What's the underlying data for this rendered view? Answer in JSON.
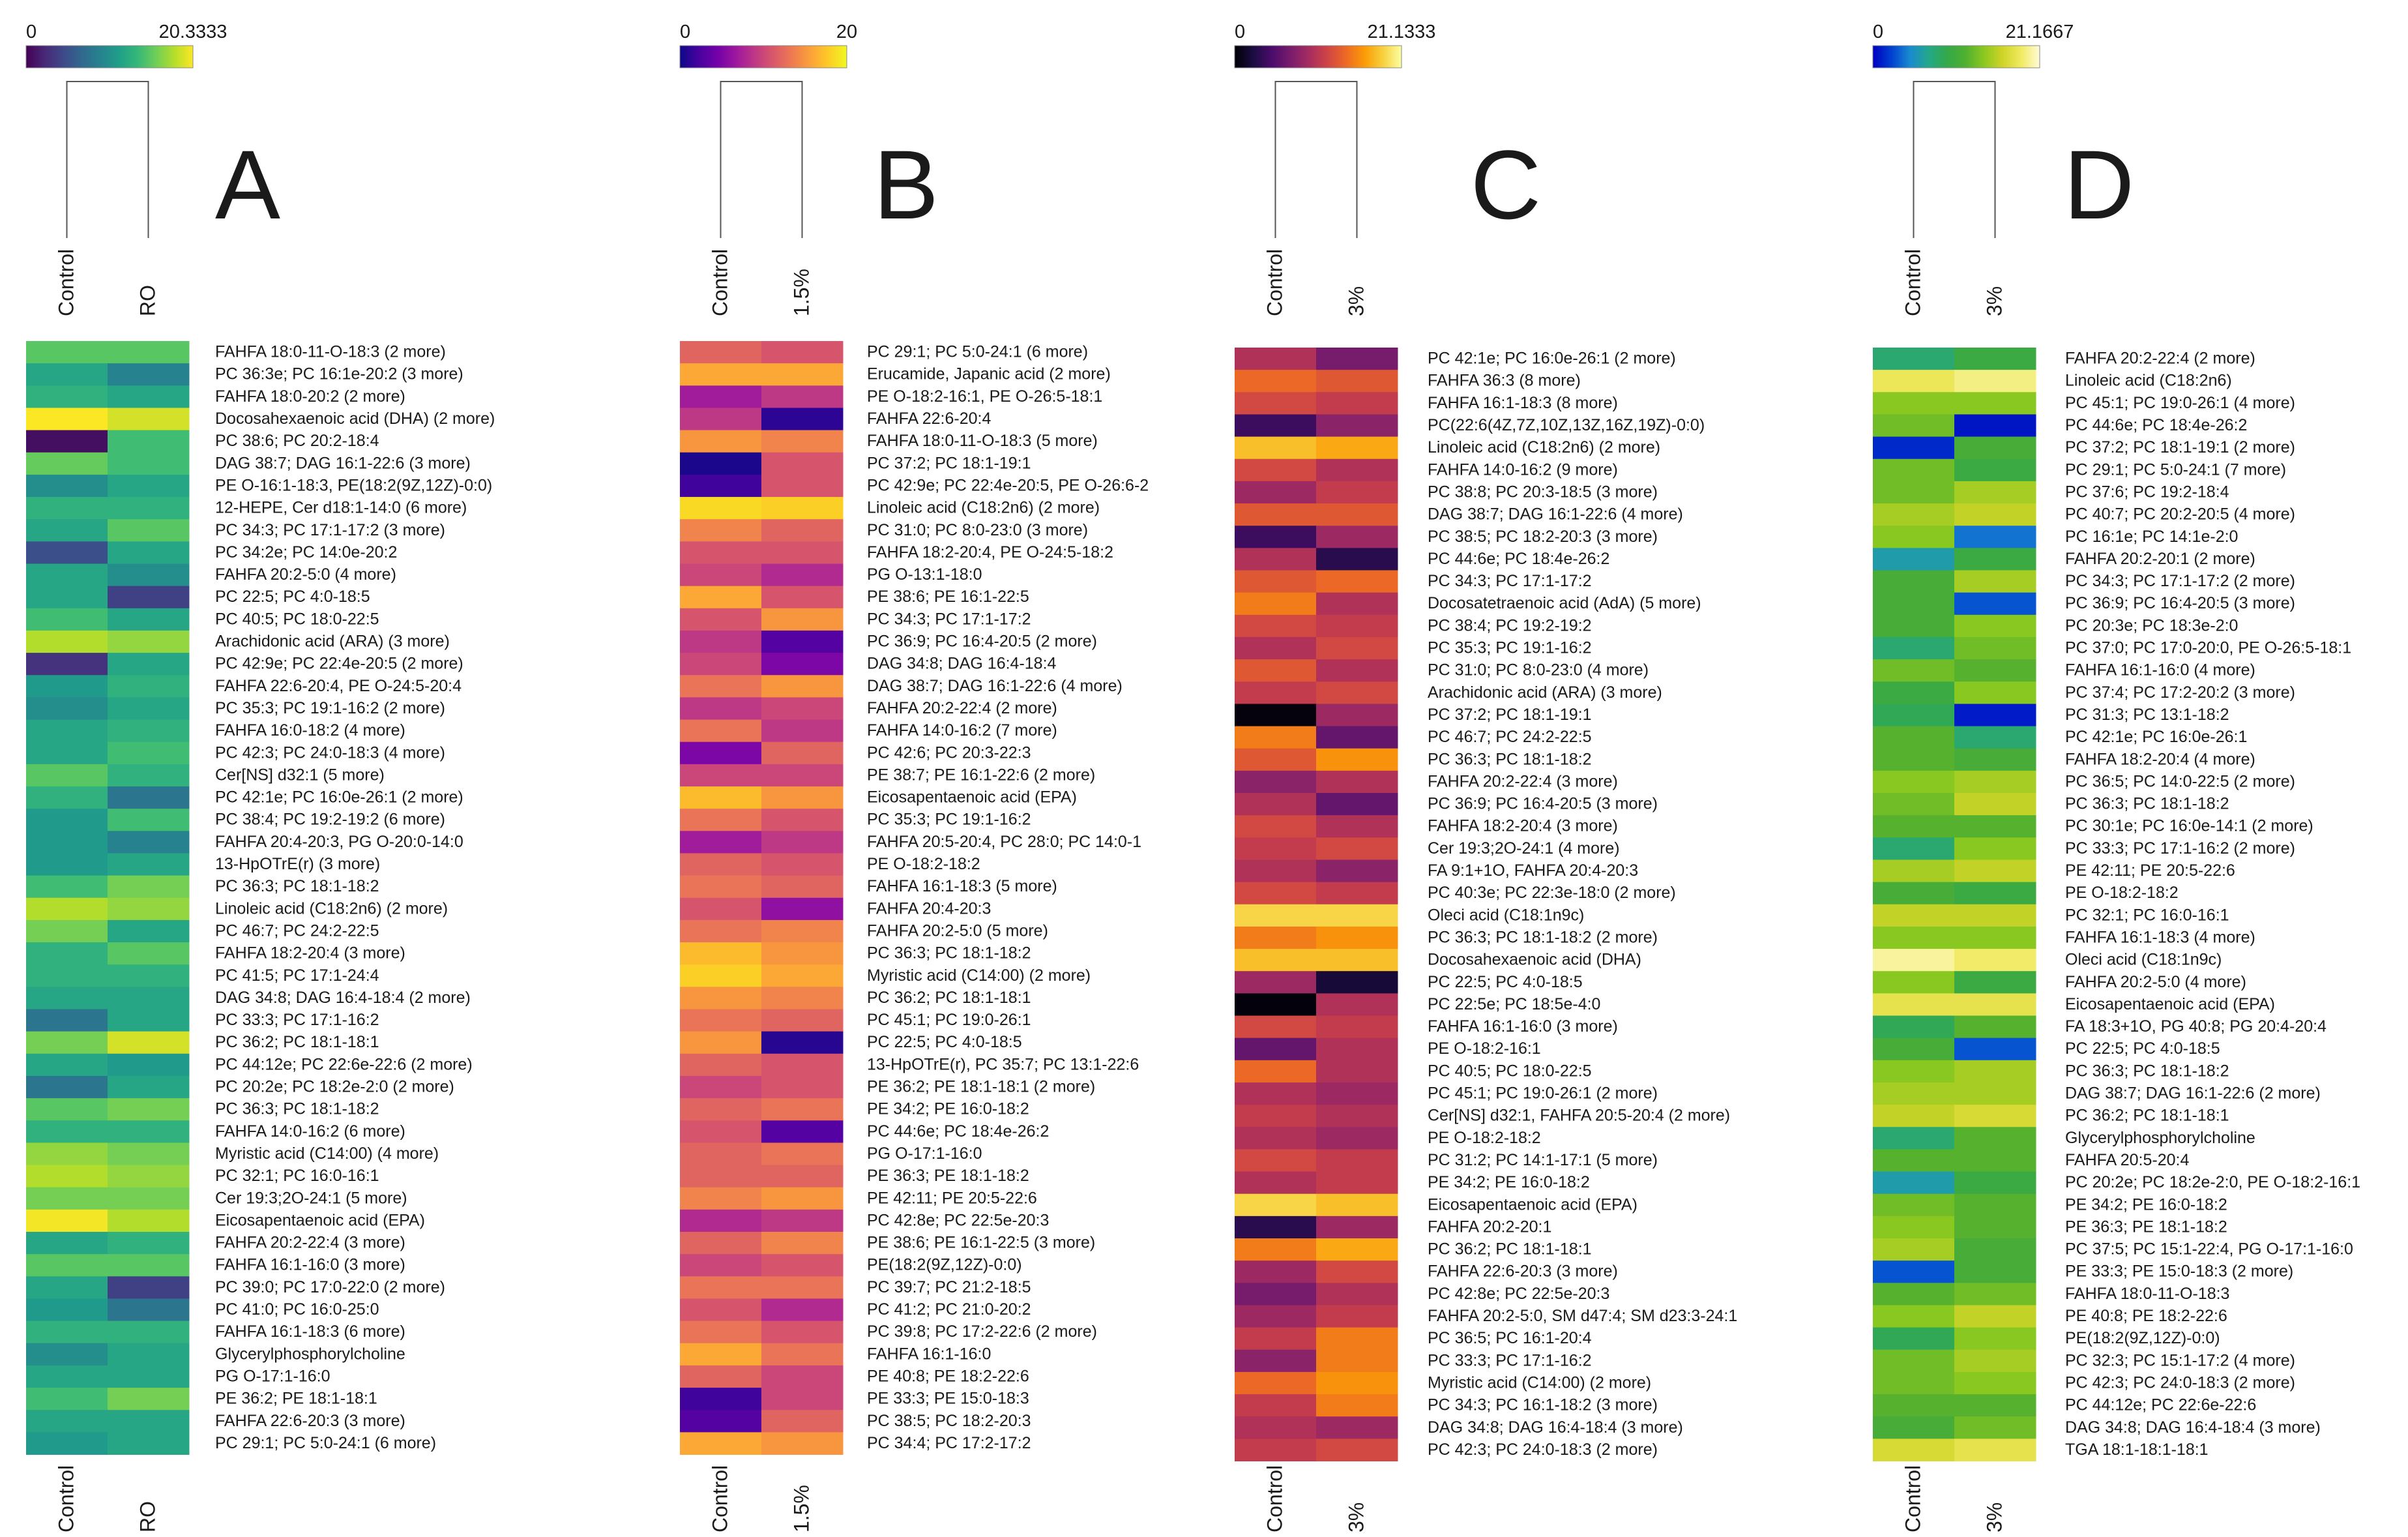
{
  "chart_data": [
    {
      "type": "heatmap",
      "panel_label": "A",
      "colormap": "viridis",
      "colorbar": {
        "min": 0,
        "max": 20.3333,
        "min_label": "0",
        "max_label": "20.3333"
      },
      "columns": [
        "Control",
        "RO"
      ],
      "rows": [
        "FAHFA 18:0-11-O-18:3 (2 more)",
        "PC 36:3e; PC 16:1e-20:2 (3 more)",
        "FAHFA 18:0-20:2 (2 more)",
        "Docosahexaenoic acid (DHA) (2 more)",
        "PC 38:6; PC 20:2-18:4",
        "DAG 38:7; DAG 16:1-22:6 (3 more)",
        "PE O-16:1-18:3, PE(18:2(9Z,12Z)-0:0)",
        "12-HEPE, Cer d18:1-14:0 (6 more)",
        "PC 34:3; PC 17:1-17:2 (3 more)",
        "PC 34:2e; PC 14:0e-20:2",
        "FAHFA 20:2-5:0 (4 more)",
        "PC 22:5; PC 4:0-18:5",
        "PC 40:5; PC 18:0-22:5",
        "Arachidonic acid (ARA) (3 more)",
        "PC 42:9e; PC 22:4e-20:5 (2 more)",
        "FAHFA 22:6-20:4, PE O-24:5-20:4",
        "PC 35:3; PC 19:1-16:2 (2 more)",
        "FAHFA 16:0-18:2 (4 more)",
        "PC 42:3; PC 24:0-18:3 (4 more)",
        "Cer[NS] d32:1 (5 more)",
        "PC 42:1e; PC 16:0e-26:1 (2 more)",
        "PC 38:4; PC 19:2-19:2 (6 more)",
        "FAHFA 20:4-20:3, PG O-20:0-14:0",
        "13-HpOTrE(r) (3 more)",
        "PC 36:3; PC 18:1-18:2",
        "Linoleic acid (C18:2n6) (2 more)",
        "PC 46:7; PC 24:2-22:5",
        "FAHFA 18:2-20:4 (3 more)",
        "PC 41:5; PC 17:1-24:4",
        "DAG 34:8; DAG 16:4-18:4 (2 more)",
        "PC 33:3; PC 17:1-16:2",
        "PC 36:2; PC 18:1-18:1",
        "PC 44:12e; PC 22:6e-22:6 (2 more)",
        "PC 20:2e; PC 18:2e-2:0 (2 more)",
        "PC 36:3; PC 18:1-18:2",
        "FAHFA 14:0-16:2 (6 more)",
        "Myristic acid (C14:00) (4 more)",
        "PC 32:1; PC 16:0-16:1",
        "Cer 19:3;2O-24:1 (5 more)",
        "Eicosapentaenoic acid (EPA)",
        "FAHFA 20:2-22:4 (3 more)",
        "FAHFA 16:1-16:0 (3 more)",
        "PC 39:0; PC 17:0-22:0 (2 more)",
        "PC 41:0; PC 16:0-25:0",
        "FAHFA 16:1-18:3 (6 more)",
        "Glycerylphosphorylcholine",
        "PG O-17:1-16:0",
        "PE 36:2; PE 18:1-18:1",
        "FAHFA 22:6-20:3 (3 more)",
        "PC 29:1; PC 5:0-24:1 (6 more)"
      ],
      "values": [
        [
          15,
          15
        ],
        [
          12,
          9
        ],
        [
          13,
          12
        ],
        [
          20.3,
          19
        ],
        [
          0.8,
          14
        ],
        [
          15.5,
          14
        ],
        [
          10,
          12
        ],
        [
          13,
          13
        ],
        [
          12,
          15
        ],
        [
          5,
          12
        ],
        [
          12,
          10
        ],
        [
          12,
          4
        ],
        [
          14,
          12
        ],
        [
          18,
          17
        ],
        [
          3,
          12
        ],
        [
          11,
          13
        ],
        [
          10,
          12
        ],
        [
          12,
          13
        ],
        [
          12,
          14
        ],
        [
          15,
          13
        ],
        [
          13,
          8
        ],
        [
          11,
          14
        ],
        [
          11,
          9
        ],
        [
          11,
          12
        ],
        [
          14,
          16
        ],
        [
          18,
          17
        ],
        [
          16,
          12
        ],
        [
          13,
          15
        ],
        [
          13,
          13
        ],
        [
          12,
          12
        ],
        [
          8,
          12
        ],
        [
          16,
          19
        ],
        [
          12,
          11
        ],
        [
          8,
          12
        ],
        [
          15,
          16
        ],
        [
          13,
          13
        ],
        [
          17,
          16
        ],
        [
          18,
          17
        ],
        [
          16,
          16
        ],
        [
          20,
          18
        ],
        [
          12,
          13
        ],
        [
          15,
          15
        ],
        [
          12,
          4
        ],
        [
          11,
          8
        ],
        [
          13,
          13
        ],
        [
          10,
          12
        ],
        [
          12,
          12
        ],
        [
          14,
          16
        ],
        [
          12,
          12
        ],
        [
          11,
          12
        ]
      ]
    },
    {
      "type": "heatmap",
      "panel_label": "B",
      "colormap": "plasma",
      "colorbar": {
        "min": 0,
        "max": 20,
        "min_label": "0",
        "max_label": "20"
      },
      "columns": [
        "Control",
        "1.5%"
      ],
      "rows": [
        "PC 29:1; PC 5:0-24:1 (6 more)",
        "Erucamide, Japanic acid (2 more)",
        "PE O-18:2-16:1, PE O-26:5-18:1",
        "FAHFA 22:6-20:4",
        "FAHFA 18:0-11-O-18:3 (5 more)",
        "PC 37:2; PC 18:1-19:1",
        "PC 42:9e; PC 22:4e-20:5, PE O-26:6-2",
        "Linoleic acid (C18:2n6) (2 more)",
        "PC 31:0; PC 8:0-23:0 (3 more)",
        "FAHFA 18:2-20:4, PE O-24:5-18:2",
        "PG O-13:1-18:0",
        "PE 38:6; PE 16:1-22:5",
        "PC 34:3; PC 17:1-17:2",
        "PC 36:9; PC 16:4-20:5 (2 more)",
        "DAG 34:8; DAG 16:4-18:4",
        "DAG 38:7; DAG 16:1-22:6 (4 more)",
        "FAHFA 20:2-22:4 (2 more)",
        "FAHFA 14:0-16:2 (7 more)",
        "PC 42:6; PC 20:3-22:3",
        "PE 38:7; PE 16:1-22:6 (2 more)",
        "Eicosapentaenoic acid (EPA)",
        "PC 35:3; PC 19:1-16:2",
        "FAHFA 20:5-20:4, PC 28:0; PC 14:0-1",
        "PE O-18:2-18:2",
        "FAHFA 16:1-18:3 (5 more)",
        "FAHFA 20:4-20:3",
        "FAHFA 20:2-5:0 (5 more)",
        "PC 36:3; PC 18:1-18:2",
        "Myristic acid (C14:00) (2 more)",
        "PC 36:2; PC 18:1-18:1",
        "PC 45:1; PC 19:0-26:1",
        "PC 22:5; PC 4:0-18:5",
        "13-HpOTrE(r), PC 35:7; PC 13:1-22:6",
        "PE 36:2; PE 18:1-18:1 (2 more)",
        "PE 34:2; PE 16:0-18:2",
        "PC 44:6e; PC 18:4e-26:2",
        "PG O-17:1-16:0",
        "PE 36:3; PE 18:1-18:2",
        "PE 42:11; PE 20:5-22:6",
        "PC 42:8e; PC 22:5e-20:3",
        "PE 38:6; PE 16:1-22:5 (3 more)",
        "PE(18:2(9Z,12Z)-0:0)",
        "PC 39:7; PC 21:2-18:5",
        "PC 41:2; PC 21:0-20:2",
        "PC 39:8; PC 17:2-22:6 (2 more)",
        "FAHFA 16:1-16:0",
        "PE 40:8; PE 18:2-22:6",
        "PE 33:3; PE 15:0-18:3",
        "PC 38:5; PC 18:2-20:3",
        "PC 34:4; PC 17:2-17:2"
      ],
      "values": [
        [
          12,
          11
        ],
        [
          16,
          16
        ],
        [
          7,
          9
        ],
        [
          9,
          1.2
        ],
        [
          15,
          14
        ],
        [
          0.5,
          11
        ],
        [
          2,
          11
        ],
        [
          18.5,
          18
        ],
        [
          14,
          12
        ],
        [
          11,
          11
        ],
        [
          10,
          8
        ],
        [
          16,
          11
        ],
        [
          11,
          15
        ],
        [
          9,
          3
        ],
        [
          10,
          5
        ],
        [
          13,
          15
        ],
        [
          9,
          10
        ],
        [
          13,
          9
        ],
        [
          5,
          12
        ],
        [
          10,
          10
        ],
        [
          17,
          15
        ],
        [
          13,
          11
        ],
        [
          7,
          9
        ],
        [
          12,
          11
        ],
        [
          13,
          12
        ],
        [
          11,
          6
        ],
        [
          13,
          14
        ],
        [
          17,
          15
        ],
        [
          18,
          16
        ],
        [
          15,
          14
        ],
        [
          13,
          12
        ],
        [
          15,
          1
        ],
        [
          12,
          11
        ],
        [
          10,
          11
        ],
        [
          12,
          13
        ],
        [
          11,
          3
        ],
        [
          12,
          13
        ],
        [
          12,
          12
        ],
        [
          14,
          15
        ],
        [
          8,
          9
        ],
        [
          12,
          14
        ],
        [
          10,
          11
        ],
        [
          13,
          13
        ],
        [
          11,
          8
        ],
        [
          13,
          11
        ],
        [
          16,
          13
        ],
        [
          12,
          10
        ],
        [
          2,
          10
        ],
        [
          3,
          12
        ],
        [
          16,
          15
        ]
      ]
    },
    {
      "type": "heatmap",
      "panel_label": "C",
      "colormap": "inferno",
      "colorbar": {
        "min": 0,
        "max": 21.1333,
        "min_label": "0",
        "max_label": "21.1333"
      },
      "columns": [
        "Control",
        "3%"
      ],
      "rows": [
        "PC 42:1e; PC 16:0e-26:1 (2 more)",
        "FAHFA 36:3 (8 more)",
        "FAHFA 16:1-18:3 (8 more)",
        "PC(22:6(4Z,7Z,10Z,13Z,16Z,19Z)-0:0)",
        "Linoleic acid (C18:2n6) (2 more)",
        "FAHFA 14:0-16:2 (9 more)",
        "PC 38:8; PC 20:3-18:5 (3 more)",
        "DAG 38:7; DAG 16:1-22:6 (4 more)",
        "PC 38:5; PC 18:2-20:3 (3 more)",
        "PC 44:6e; PC 18:4e-26:2",
        "PC 34:3; PC 17:1-17:2",
        "Docosatetraenoic acid (AdA) (5 more)",
        "PC 38:4; PC 19:2-19:2",
        "PC 35:3; PC 19:1-16:2",
        "PC 31:0; PC 8:0-23:0 (4 more)",
        "Arachidonic acid (ARA) (3 more)",
        "PC 37:2; PC 18:1-19:1",
        "PC 46:7; PC 24:2-22:5",
        "PC 36:3; PC 18:1-18:2",
        "FAHFA 20:2-22:4 (3 more)",
        "PC 36:9; PC 16:4-20:5 (3 more)",
        "FAHFA 18:2-20:4 (3 more)",
        "Cer 19:3;2O-24:1 (4 more)",
        "FA 9:1+1O, FAHFA 20:4-20:3",
        "PC 40:3e; PC 22:3e-18:0 (2 more)",
        "Oleci acid (C18:1n9c)",
        "PC 36:3; PC 18:1-18:2 (2 more)",
        "Docosahexaenoic acid (DHA)",
        "PC 22:5; PC 4:0-18:5",
        "PC 22:5e; PC 18:5e-4:0",
        "FAHFA 16:1-16:0 (3 more)",
        "PE O-18:2-16:1",
        "PC 40:5; PC 18:0-22:5",
        "PC 45:1; PC 19:0-26:1 (2 more)",
        "Cer[NS] d32:1, FAHFA 20:5-20:4 (2 more)",
        "PE O-18:2-18:2",
        "PC 31:2; PC 14:1-17:1 (5 more)",
        "PE 34:2; PE 16:0-18:2",
        "Eicosapentaenoic acid (EPA)",
        "FAHFA 20:2-20:1",
        "PC 36:2; PC 18:1-18:1",
        "FAHFA 22:6-20:3 (3 more)",
        "PC 42:8e; PC 22:5e-20:3",
        "FAHFA 20:2-5:0, SM d47:4; SM d23:3-24:1",
        "PC 36:5; PC 16:1-20:4",
        "PC 33:3; PC 17:1-16:2",
        "Myristic acid (C14:00) (2 more)",
        "PC 34:3; PC 16:1-18:2 (3 more)",
        "DAG 34:8; DAG 16:4-18:4 (3 more)",
        "PC 42:3; PC 24:0-18:3 (2 more)"
      ],
      "values": [
        [
          10,
          7
        ],
        [
          14,
          13
        ],
        [
          12,
          11
        ],
        [
          4,
          8
        ],
        [
          18,
          17
        ],
        [
          12,
          10
        ],
        [
          9,
          11
        ],
        [
          13,
          13
        ],
        [
          4,
          9
        ],
        [
          10,
          3
        ],
        [
          13,
          14
        ],
        [
          15,
          10
        ],
        [
          12,
          11
        ],
        [
          10,
          12
        ],
        [
          13,
          10
        ],
        [
          11,
          12
        ],
        [
          0.4,
          9
        ],
        [
          15,
          6
        ],
        [
          13,
          16
        ],
        [
          8,
          10
        ],
        [
          10,
          6
        ],
        [
          12,
          10
        ],
        [
          11,
          12
        ],
        [
          10,
          8
        ],
        [
          12,
          11
        ],
        [
          19,
          19
        ],
        [
          15,
          16
        ],
        [
          18,
          18
        ],
        [
          9,
          2
        ],
        [
          0.3,
          10
        ],
        [
          12,
          11
        ],
        [
          6,
          10
        ],
        [
          14,
          10
        ],
        [
          10,
          9
        ],
        [
          11,
          10
        ],
        [
          10,
          9
        ],
        [
          12,
          11
        ],
        [
          10,
          11
        ],
        [
          19,
          18
        ],
        [
          3,
          9
        ],
        [
          15,
          17
        ],
        [
          9,
          12
        ],
        [
          7,
          10
        ],
        [
          9,
          11
        ],
        [
          11,
          15
        ],
        [
          8,
          15
        ],
        [
          14,
          16
        ],
        [
          11,
          15
        ],
        [
          10,
          9
        ],
        [
          11,
          12
        ]
      ]
    },
    {
      "type": "heatmap",
      "panel_label": "D",
      "colormap": "rainbow",
      "colorbar": {
        "min": 0,
        "max": 21.1667,
        "min_label": "0",
        "max_label": "21.1667"
      },
      "columns": [
        "Control",
        "3%"
      ],
      "rows": [
        "FAHFA 20:2-22:4 (2 more)",
        "Linoleic acid (C18:2n6)",
        "PC 45:1; PC 19:0-26:1 (4 more)",
        "PC 44:6e; PC 18:4e-26:2",
        "PC 37:2; PC 18:1-19:1 (2 more)",
        "PC 29:1; PC 5:0-24:1 (7 more)",
        "PC 37:6; PC 19:2-18:4",
        "PC 40:7; PC 20:2-20:5 (4 more)",
        "PC 16:1e; PC 14:1e-2:0",
        "FAHFA 20:2-20:1 (2 more)",
        "PC 34:3; PC 17:1-17:2 (2 more)",
        "PC 36:9; PC 16:4-20:5 (3 more)",
        "PC 20:3e; PC 18:3e-2:0",
        "PC 37:0; PC 17:0-20:0, PE O-26:5-18:1",
        "FAHFA 16:1-16:0 (4 more)",
        "PC 37:4; PC 17:2-20:2 (3 more)",
        "PC 31:3; PC 13:1-18:2",
        "PC 42:1e; PC 16:0e-26:1",
        "FAHFA 18:2-20:4 (4 more)",
        "PC 36:5; PC 14:0-22:5 (2 more)",
        "PC 36:3; PC 18:1-18:2",
        "PC 30:1e; PC 16:0e-14:1 (2 more)",
        "PC 33:3; PC 17:1-16:2 (2 more)",
        "PE 42:11; PE 20:5-22:6",
        "PE O-18:2-18:2",
        "PC 32:1; PC 16:0-16:1",
        "FAHFA 16:1-18:3 (4 more)",
        "Oleci acid (C18:1n9c)",
        "FAHFA 20:2-5:0 (4 more)",
        "Eicosapentaenoic acid (EPA)",
        "FA 18:3+1O, PG 40:8; PG 20:4-20:4",
        "PC 22:5; PC 4:0-18:5",
        "PC 36:3; PC 18:1-18:2",
        "DAG 38:7; DAG 16:1-22:6 (2 more)",
        "PC 36:2; PC 18:1-18:1",
        "Glycerylphosphorylcholine",
        "FAHFA 20:5-20:4",
        "PC 20:2e; PC 18:2e-2:0, PE O-18:2-16:1",
        "PE 34:2; PE 16:0-18:2",
        "PE 36:3; PE 18:1-18:2",
        "PC 37:5; PC 15:1-22:4, PG O-17:1-16:0",
        "PE 33:3; PE 15:0-18:3 (2 more)",
        "FAHFA 18:0-11-O-18:3",
        "PE 40:8; PE 18:2-22:6",
        "PE(18:2(9Z,12Z)-0:0)",
        "PC 32:3; PC 15:1-17:2 (4 more)",
        "PC 42:3; PC 24:0-18:3 (2 more)",
        "PC 44:12e; PC 22:6e-22:6",
        "DAG 34:8; DAG 16:4-18:4 (3 more)",
        "TGA 18:1-18:1-18:1"
      ],
      "values": [
        [
          8,
          10
        ],
        [
          18.5,
          19.5
        ],
        [
          14,
          14
        ],
        [
          13,
          0.8
        ],
        [
          1.5,
          11
        ],
        [
          13,
          10
        ],
        [
          13,
          15
        ],
        [
          15,
          16
        ],
        [
          14,
          4
        ],
        [
          6,
          10
        ],
        [
          11,
          15
        ],
        [
          11,
          3
        ],
        [
          11,
          14
        ],
        [
          8,
          13
        ],
        [
          13,
          12
        ],
        [
          10,
          14
        ],
        [
          9,
          1
        ],
        [
          12,
          8
        ],
        [
          12,
          11
        ],
        [
          14,
          15
        ],
        [
          13,
          16
        ],
        [
          12,
          12
        ],
        [
          8,
          14
        ],
        [
          15,
          16
        ],
        [
          11,
          10
        ],
        [
          16,
          16
        ],
        [
          14,
          14
        ],
        [
          20,
          19
        ],
        [
          14,
          10
        ],
        [
          18,
          18
        ],
        [
          9,
          12
        ],
        [
          11,
          3
        ],
        [
          14,
          15
        ],
        [
          15,
          15
        ],
        [
          16,
          17
        ],
        [
          8,
          12
        ],
        [
          12,
          12
        ],
        [
          6,
          10
        ],
        [
          13,
          12
        ],
        [
          14,
          12
        ],
        [
          15,
          11
        ],
        [
          3,
          11
        ],
        [
          12,
          13
        ],
        [
          14,
          16
        ],
        [
          9,
          14
        ],
        [
          13,
          15
        ],
        [
          13,
          14
        ],
        [
          12,
          12
        ],
        [
          11,
          13
        ],
        [
          17,
          18
        ]
      ]
    }
  ]
}
